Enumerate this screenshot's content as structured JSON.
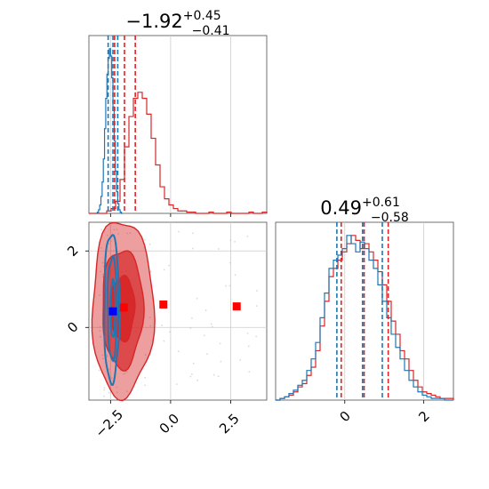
{
  "chart_data": {
    "type": "corner",
    "panels": [
      {
        "id": "hist-param-1",
        "type": "histogram",
        "title": {
          "main": "−1.92",
          "sup": "+0.45",
          "sub": "−0.41"
        },
        "xlim": [
          -3.4,
          4.0
        ],
        "grid": true,
        "series": [
          {
            "color": "#d62728",
            "bins": {
              "start": -3.4,
              "width": 0.185,
              "heights": [
                0,
                0,
                0,
                0,
                2,
                4,
                10,
                28,
                55,
                80,
                95,
                100,
                95,
                82,
                62,
                40,
                22,
                12,
                7,
                4,
                2,
                2,
                1,
                1,
                0,
                0,
                0,
                1,
                0,
                0,
                0,
                1,
                0,
                0,
                0,
                0,
                1,
                0,
                0,
                1
              ]
            },
            "quantiles": [
              -2.33,
              -1.92,
              -1.47
            ]
          },
          {
            "color": "#1f77b4",
            "bins": {
              "start": -3.1,
              "width": 0.05,
              "heights": [
                0,
                1,
                3,
                7,
                14,
                26,
                45,
                70,
                95,
                115,
                128,
                136,
                130,
                112,
                88,
                60,
                35,
                18,
                8,
                3,
                1,
                0
              ]
            },
            "quantiles": [
              -2.6,
              -2.4,
              -2.2
            ]
          }
        ]
      },
      {
        "id": "hist-param-2",
        "type": "histogram",
        "title": {
          "main": "0.49",
          "sup": "+0.61",
          "sub": "−0.58"
        },
        "xlim": [
          -1.75,
          2.75
        ],
        "xticks": [
          0,
          2
        ],
        "xtick_labels": [
          "0",
          "2"
        ],
        "grid": true,
        "series": [
          {
            "color": "#d62728",
            "bins": {
              "start": -1.75,
              "width": 0.1125,
              "heights": [
                0,
                1,
                2,
                3,
                5,
                8,
                10,
                15,
                20,
                30,
                45,
                60,
                75,
                80,
                85,
                90,
                95,
                100,
                97,
                92,
                95,
                90,
                85,
                78,
                70,
                60,
                48,
                40,
                30,
                25,
                18,
                12,
                8,
                5,
                4,
                3,
                2,
                1,
                1,
                1
              ]
            },
            "quantiles": [
              -0.09,
              0.49,
              1.1
            ]
          },
          {
            "color": "#1f77b4",
            "bins": {
              "start": -1.75,
              "width": 0.1125,
              "heights": [
                0,
                1,
                2,
                4,
                6,
                9,
                12,
                18,
                25,
                35,
                50,
                65,
                80,
                85,
                88,
                92,
                100,
                95,
                90,
                96,
                92,
                85,
                80,
                70,
                60,
                50,
                40,
                32,
                25,
                18,
                12,
                8,
                5,
                3,
                2,
                1,
                1,
                1,
                0,
                0
              ]
            },
            "quantiles": [
              -0.2,
              0.45,
              0.95
            ]
          }
        ]
      },
      {
        "id": "joint-param-1-2",
        "type": "contour-scatter",
        "xlim": [
          -3.4,
          4.0
        ],
        "ylim": [
          -1.9,
          2.75
        ],
        "xticks": [
          -2.5,
          0.0,
          2.5
        ],
        "xtick_labels": [
          "−2.5",
          "0.0",
          "2.5"
        ],
        "yticks": [
          0,
          2
        ],
        "ytick_labels": [
          "0",
          "2"
        ],
        "grid": true,
        "contours": [
          {
            "color": "#d62728",
            "filled": true,
            "levels": [
              {
                "cx": -2.0,
                "cy": 0.5,
                "rx": 1.28,
                "ry": 2.3
              },
              {
                "cx": -2.0,
                "cy": 0.5,
                "rx": 0.85,
                "ry": 1.55
              },
              {
                "cx": -2.0,
                "cy": 0.5,
                "rx": 0.5,
                "ry": 0.85
              }
            ]
          },
          {
            "color": "#1f77b4",
            "filled": false,
            "levels": [
              {
                "cx": -2.45,
                "cy": 0.5,
                "rx": 0.32,
                "ry": 1.95
              },
              {
                "cx": -2.42,
                "cy": 0.5,
                "rx": 0.2,
                "ry": 1.35
              },
              {
                "cx": -2.4,
                "cy": 0.5,
                "rx": 0.1,
                "ry": 0.75
              }
            ]
          }
        ],
        "markers": [
          {
            "x": -2.4,
            "y": 0.42,
            "color": "#0000ff"
          },
          {
            "x": -1.95,
            "y": 0.52,
            "color": "#ff0000"
          },
          {
            "x": -0.3,
            "y": 0.6,
            "color": "#ff0000"
          },
          {
            "x": 2.75,
            "y": 0.55,
            "color": "#ff0000"
          }
        ],
        "scatter_color": "#c9c9c9"
      }
    ]
  }
}
